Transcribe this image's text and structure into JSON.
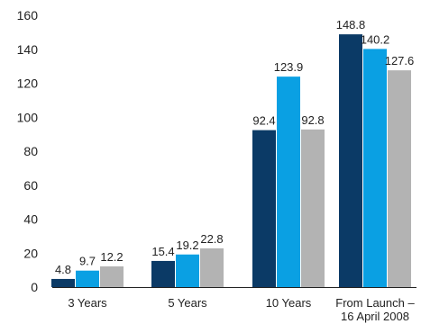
{
  "chart_data": {
    "type": "bar",
    "title": "",
    "xlabel": "",
    "ylabel": "",
    "ylim": [
      0,
      160
    ],
    "yticks": [
      0,
      20,
      40,
      60,
      80,
      100,
      120,
      140,
      160
    ],
    "categories": [
      [
        "3 Years"
      ],
      [
        "5 Years"
      ],
      [
        "10 Years"
      ],
      [
        "From Launch –",
        "16 April 2008"
      ]
    ],
    "series": [
      {
        "values": [
          4.8,
          15.4,
          92.4,
          148.8
        ],
        "color": "#0b3a66",
        "labels": [
          "4.8",
          "15.4",
          "92.4",
          "148.8"
        ]
      },
      {
        "values": [
          9.7,
          19.2,
          123.9,
          140.2
        ],
        "color": "#0aa0e3",
        "labels": [
          "9.7",
          "19.2",
          "123.9",
          "140.2"
        ]
      },
      {
        "values": [
          12.2,
          22.8,
          92.8,
          127.6
        ],
        "color": "#b3b3b3",
        "labels": [
          "12.2",
          "22.8",
          "92.8",
          "127.6"
        ]
      }
    ],
    "grid": false,
    "legend": "none"
  }
}
